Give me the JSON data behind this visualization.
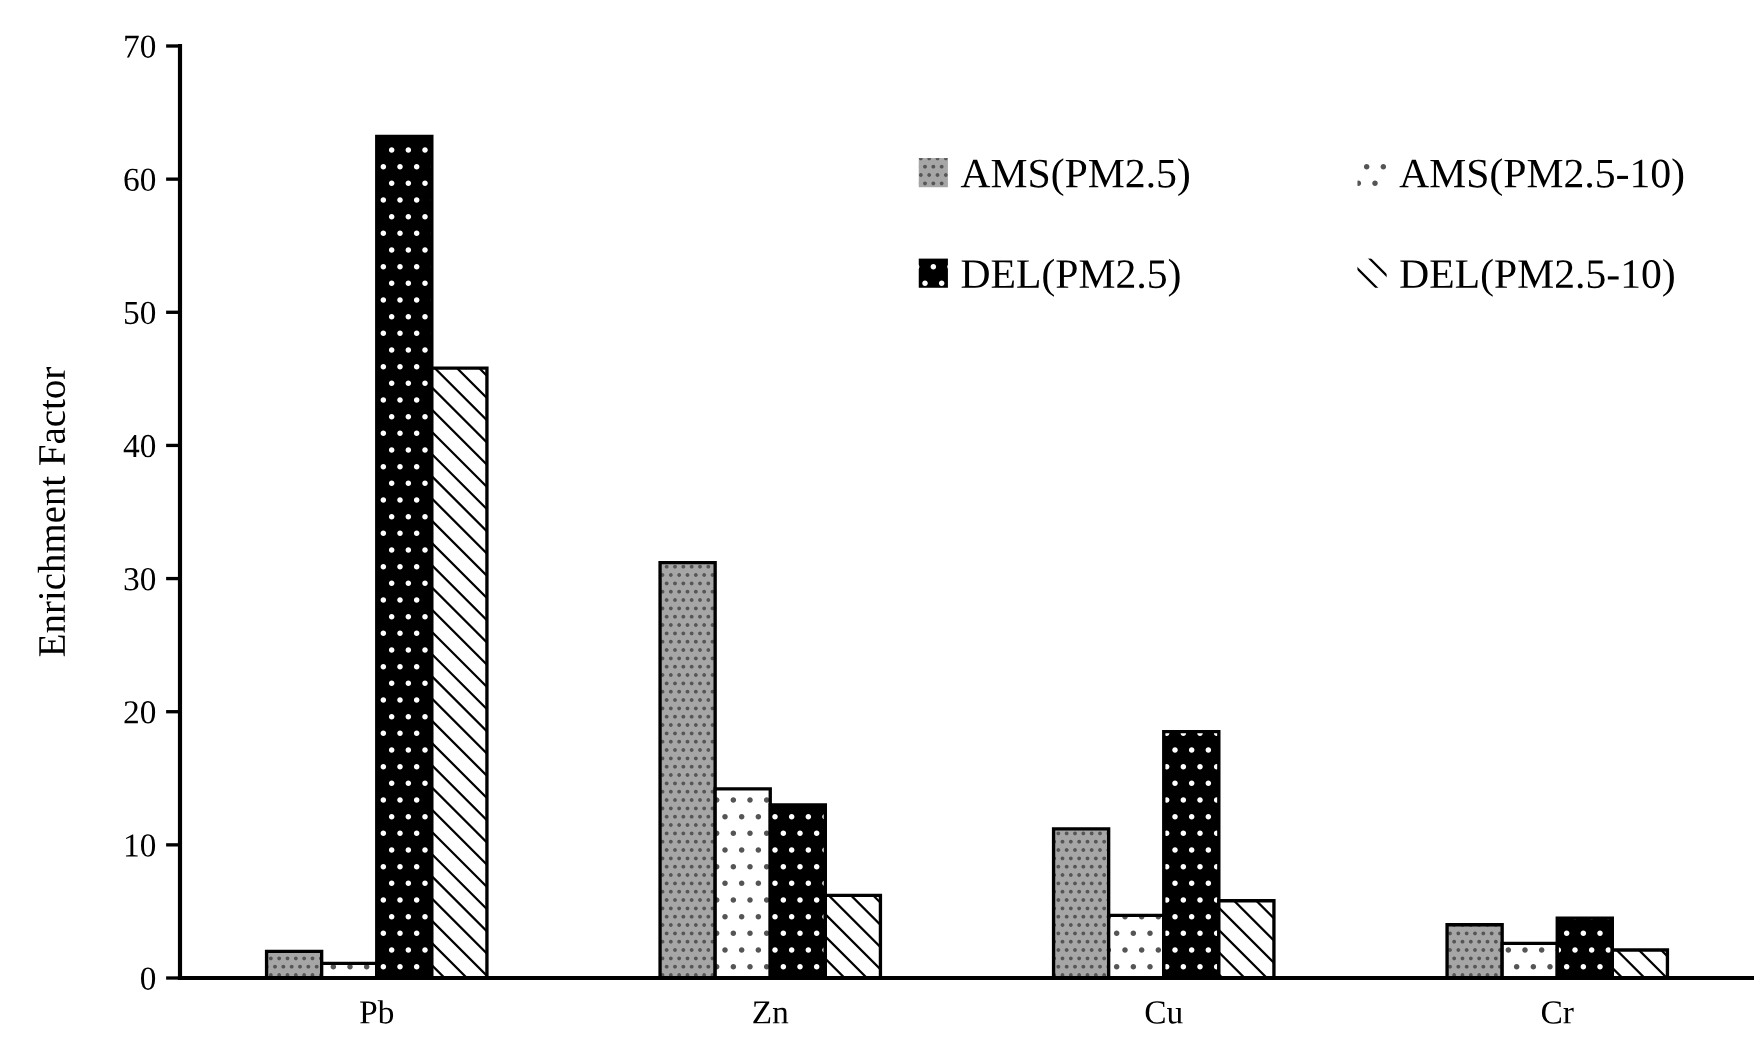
{
  "chart_data": {
    "type": "bar",
    "ylabel": "Enrichment Factor",
    "categories": [
      "Pb",
      "Zn",
      "Cu",
      "Cr"
    ],
    "series": [
      {
        "name": "AMS(PM2.5)",
        "color": "#a6a6a6",
        "values": [
          2.0,
          31.2,
          11.2,
          4.0
        ]
      },
      {
        "name": "AMS(PM2.5-10)",
        "color": "#ffffff",
        "values": [
          1.1,
          14.2,
          4.7,
          2.6
        ]
      },
      {
        "name": "DEL(PM2.5)",
        "color": "#000000",
        "values": [
          63.2,
          13.0,
          18.5,
          4.5
        ]
      },
      {
        "name": "DEL(PM2.5-10)",
        "color": "#ffffff",
        "values": [
          45.8,
          6.2,
          5.8,
          2.1
        ]
      }
    ],
    "ylim": [
      0,
      70
    ],
    "yticks": [
      0,
      10,
      20,
      30,
      40,
      50,
      60,
      70
    ],
    "grid": false,
    "legend": "top right"
  }
}
